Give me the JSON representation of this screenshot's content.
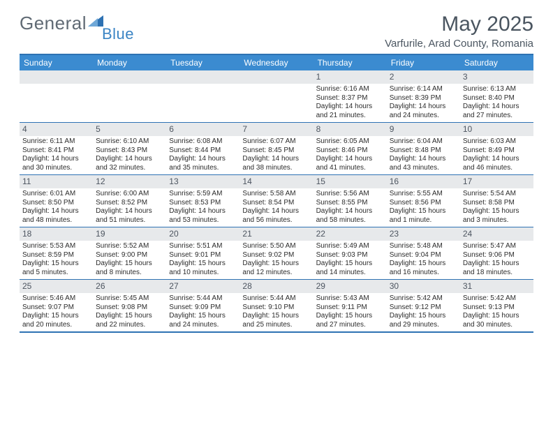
{
  "logo": {
    "text1": "General",
    "text2": "Blue"
  },
  "title": {
    "month": "May 2025",
    "location": "Varfurile, Arad County, Romania"
  },
  "colors": {
    "header_bg": "#3b8bd0",
    "rule": "#2e72b3",
    "daynum_bg": "#e7e9eb",
    "text": "#2b2b2b",
    "title_text": "#4a5560",
    "logo_gray": "#606a74",
    "logo_blue": "#3a84c4",
    "page_bg": "#ffffff"
  },
  "day_labels": [
    "Sunday",
    "Monday",
    "Tuesday",
    "Wednesday",
    "Thursday",
    "Friday",
    "Saturday"
  ],
  "weeks": [
    [
      null,
      null,
      null,
      null,
      {
        "n": "1",
        "sr": "6:16 AM",
        "ss": "8:37 PM",
        "d1": "14 hours",
        "d2": "and 21 minutes."
      },
      {
        "n": "2",
        "sr": "6:14 AM",
        "ss": "8:39 PM",
        "d1": "14 hours",
        "d2": "and 24 minutes."
      },
      {
        "n": "3",
        "sr": "6:13 AM",
        "ss": "8:40 PM",
        "d1": "14 hours",
        "d2": "and 27 minutes."
      }
    ],
    [
      {
        "n": "4",
        "sr": "6:11 AM",
        "ss": "8:41 PM",
        "d1": "14 hours",
        "d2": "and 30 minutes."
      },
      {
        "n": "5",
        "sr": "6:10 AM",
        "ss": "8:43 PM",
        "d1": "14 hours",
        "d2": "and 32 minutes."
      },
      {
        "n": "6",
        "sr": "6:08 AM",
        "ss": "8:44 PM",
        "d1": "14 hours",
        "d2": "and 35 minutes."
      },
      {
        "n": "7",
        "sr": "6:07 AM",
        "ss": "8:45 PM",
        "d1": "14 hours",
        "d2": "and 38 minutes."
      },
      {
        "n": "8",
        "sr": "6:05 AM",
        "ss": "8:46 PM",
        "d1": "14 hours",
        "d2": "and 41 minutes."
      },
      {
        "n": "9",
        "sr": "6:04 AM",
        "ss": "8:48 PM",
        "d1": "14 hours",
        "d2": "and 43 minutes."
      },
      {
        "n": "10",
        "sr": "6:03 AM",
        "ss": "8:49 PM",
        "d1": "14 hours",
        "d2": "and 46 minutes."
      }
    ],
    [
      {
        "n": "11",
        "sr": "6:01 AM",
        "ss": "8:50 PM",
        "d1": "14 hours",
        "d2": "and 48 minutes."
      },
      {
        "n": "12",
        "sr": "6:00 AM",
        "ss": "8:52 PM",
        "d1": "14 hours",
        "d2": "and 51 minutes."
      },
      {
        "n": "13",
        "sr": "5:59 AM",
        "ss": "8:53 PM",
        "d1": "14 hours",
        "d2": "and 53 minutes."
      },
      {
        "n": "14",
        "sr": "5:58 AM",
        "ss": "8:54 PM",
        "d1": "14 hours",
        "d2": "and 56 minutes."
      },
      {
        "n": "15",
        "sr": "5:56 AM",
        "ss": "8:55 PM",
        "d1": "14 hours",
        "d2": "and 58 minutes."
      },
      {
        "n": "16",
        "sr": "5:55 AM",
        "ss": "8:56 PM",
        "d1": "15 hours",
        "d2": "and 1 minute."
      },
      {
        "n": "17",
        "sr": "5:54 AM",
        "ss": "8:58 PM",
        "d1": "15 hours",
        "d2": "and 3 minutes."
      }
    ],
    [
      {
        "n": "18",
        "sr": "5:53 AM",
        "ss": "8:59 PM",
        "d1": "15 hours",
        "d2": "and 5 minutes."
      },
      {
        "n": "19",
        "sr": "5:52 AM",
        "ss": "9:00 PM",
        "d1": "15 hours",
        "d2": "and 8 minutes."
      },
      {
        "n": "20",
        "sr": "5:51 AM",
        "ss": "9:01 PM",
        "d1": "15 hours",
        "d2": "and 10 minutes."
      },
      {
        "n": "21",
        "sr": "5:50 AM",
        "ss": "9:02 PM",
        "d1": "15 hours",
        "d2": "and 12 minutes."
      },
      {
        "n": "22",
        "sr": "5:49 AM",
        "ss": "9:03 PM",
        "d1": "15 hours",
        "d2": "and 14 minutes."
      },
      {
        "n": "23",
        "sr": "5:48 AM",
        "ss": "9:04 PM",
        "d1": "15 hours",
        "d2": "and 16 minutes."
      },
      {
        "n": "24",
        "sr": "5:47 AM",
        "ss": "9:06 PM",
        "d1": "15 hours",
        "d2": "and 18 minutes."
      }
    ],
    [
      {
        "n": "25",
        "sr": "5:46 AM",
        "ss": "9:07 PM",
        "d1": "15 hours",
        "d2": "and 20 minutes."
      },
      {
        "n": "26",
        "sr": "5:45 AM",
        "ss": "9:08 PM",
        "d1": "15 hours",
        "d2": "and 22 minutes."
      },
      {
        "n": "27",
        "sr": "5:44 AM",
        "ss": "9:09 PM",
        "d1": "15 hours",
        "d2": "and 24 minutes."
      },
      {
        "n": "28",
        "sr": "5:44 AM",
        "ss": "9:10 PM",
        "d1": "15 hours",
        "d2": "and 25 minutes."
      },
      {
        "n": "29",
        "sr": "5:43 AM",
        "ss": "9:11 PM",
        "d1": "15 hours",
        "d2": "and 27 minutes."
      },
      {
        "n": "30",
        "sr": "5:42 AM",
        "ss": "9:12 PM",
        "d1": "15 hours",
        "d2": "and 29 minutes."
      },
      {
        "n": "31",
        "sr": "5:42 AM",
        "ss": "9:13 PM",
        "d1": "15 hours",
        "d2": "and 30 minutes."
      }
    ]
  ],
  "labels": {
    "sunrise": "Sunrise: ",
    "sunset": "Sunset: ",
    "daylight": "Daylight: "
  }
}
